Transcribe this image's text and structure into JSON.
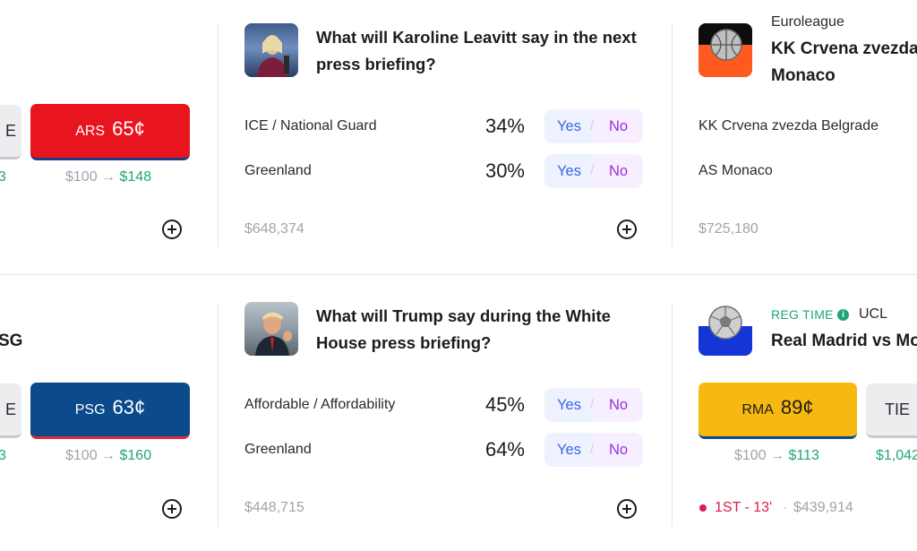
{
  "row1": {
    "left_partial": {
      "grey_btn_label": "E",
      "team_button": {
        "code": "ARS",
        "price": "65¢",
        "color": "#e8141e"
      },
      "payout_left_fragment": "3",
      "payout": {
        "from": "$100",
        "arrow": "→",
        "to": "$148"
      }
    },
    "market_leavitt": {
      "question": "What will Karoline Leavitt say in the next press briefing?",
      "outcomes": [
        {
          "label": "ICE / National Guard",
          "percent": "34%",
          "yes": "Yes",
          "no": "No"
        },
        {
          "label": "Greenland",
          "percent": "30%",
          "yes": "Yes",
          "no": "No"
        }
      ],
      "volume": "$648,374"
    },
    "euroleague": {
      "league": "Euroleague",
      "title_line1": "KK Crvena zvezda",
      "title_line2": "Monaco",
      "teams": [
        "KK Crvena zvezda Belgrade",
        "AS Monaco"
      ],
      "volume": "$725,180"
    }
  },
  "row2": {
    "left_partial": {
      "title_fragment": "SG",
      "grey_btn_label": "E",
      "team_button": {
        "code": "PSG",
        "price": "63¢",
        "color": "#0b4a8b"
      },
      "payout_left_fragment": "3",
      "payout": {
        "from": "$100",
        "arrow": "→",
        "to": "$160"
      }
    },
    "market_trump": {
      "question": "What will Trump say during the White House press briefing?",
      "outcomes": [
        {
          "label": "Affordable / Affordability",
          "percent": "45%",
          "yes": "Yes",
          "no": "No"
        },
        {
          "label": "Greenland",
          "percent": "64%",
          "yes": "Yes",
          "no": "No"
        }
      ],
      "volume": "$448,715"
    },
    "ucl": {
      "status": "REG TIME",
      "league": "UCL",
      "title": "Real Madrid vs Mo",
      "team_button": {
        "code": "RMA",
        "price": "89¢",
        "color": "#f7b90f"
      },
      "tie_label": "TIE",
      "payout": {
        "from": "$100",
        "arrow": "→",
        "to": "$113"
      },
      "payout_right_fragment": "$1,042",
      "live": "1ST - 13'",
      "separator": "·",
      "volume": "$439,914"
    }
  }
}
